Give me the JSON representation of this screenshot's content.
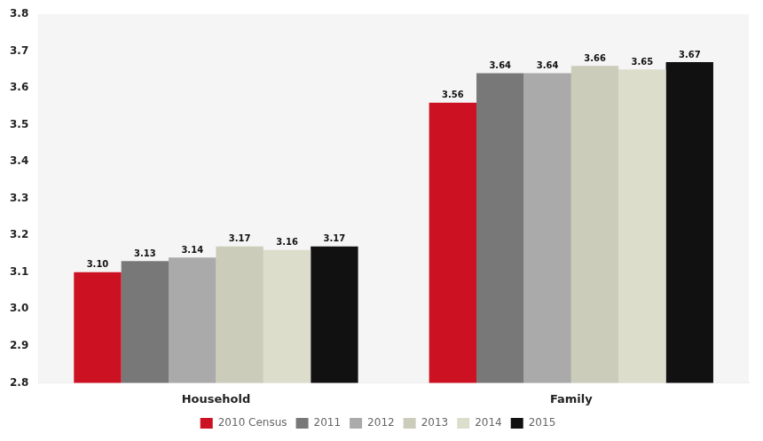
{
  "chart_data": {
    "type": "bar",
    "categories": [
      "Household",
      "Family"
    ],
    "series": [
      {
        "name": "2010 Census",
        "color": "#cc1122",
        "values": [
          3.1,
          3.56
        ],
        "value_labels": [
          "3.10",
          "3.56"
        ]
      },
      {
        "name": "2011",
        "color": "#787878",
        "values": [
          3.13,
          3.64
        ],
        "value_labels": [
          "3.13",
          "3.64"
        ]
      },
      {
        "name": "2012",
        "color": "#aaaaaa",
        "values": [
          3.14,
          3.64
        ],
        "value_labels": [
          "3.14",
          "3.64"
        ]
      },
      {
        "name": "2013",
        "color": "#ccccbb",
        "values": [
          3.17,
          3.66
        ],
        "value_labels": [
          "3.17",
          "3.66"
        ]
      },
      {
        "name": "2014",
        "color": "#ddddcc",
        "values": [
          3.16,
          3.65
        ],
        "value_labels": [
          "3.16",
          "3.65"
        ]
      },
      {
        "name": "2015",
        "color": "#111111",
        "values": [
          3.17,
          3.67
        ],
        "value_labels": [
          "3.17",
          "3.67"
        ]
      }
    ],
    "ylim": [
      2.8,
      3.8
    ],
    "yticks": [
      2.8,
      2.9,
      {
        "value": 3.0,
        "label": "3.0"
      },
      3.1,
      3.2,
      3.3,
      3.4,
      3.5,
      3.6,
      3.7,
      3.8
    ],
    "grid": false,
    "legend": "bottom",
    "data_labels": true
  }
}
